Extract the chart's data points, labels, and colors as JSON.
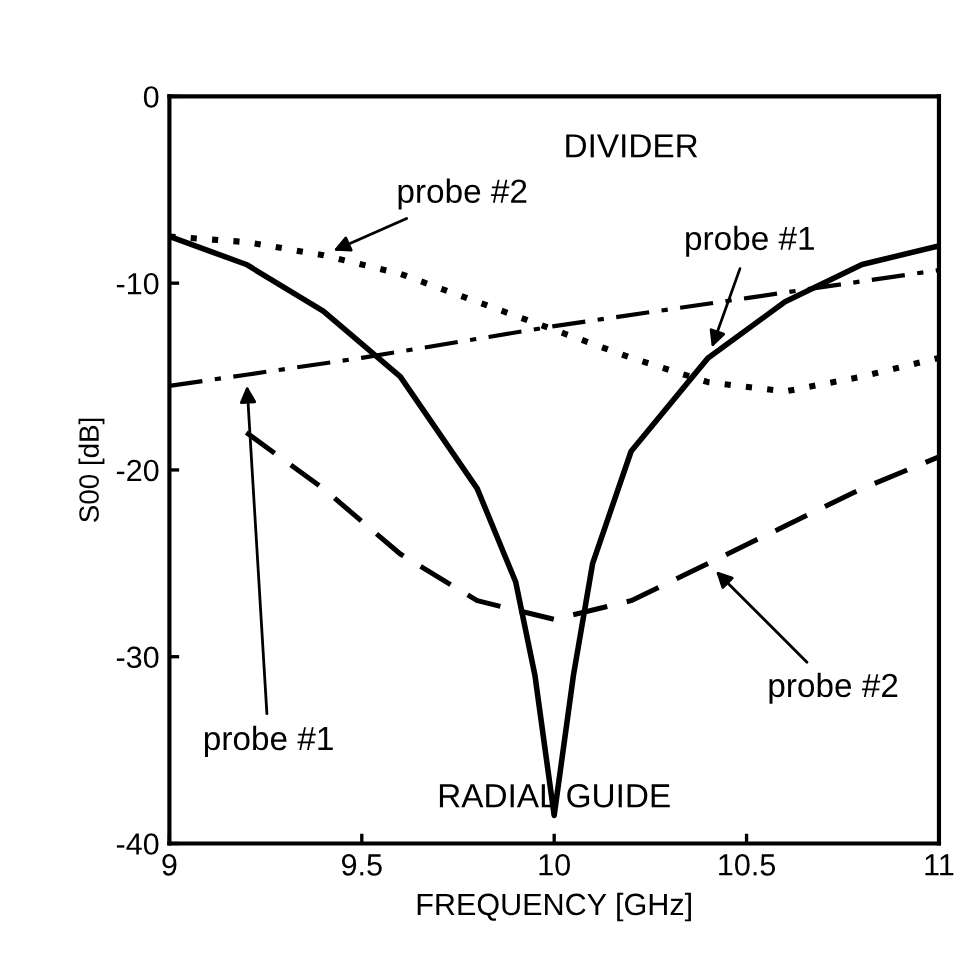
{
  "chart_data": {
    "type": "line",
    "xlabel": "FREQUENCY [GHz]",
    "ylabel": "S00 [dB]",
    "xlim": [
      9,
      11
    ],
    "ylim": [
      -40,
      0
    ],
    "xticks": [
      9,
      9.5,
      10,
      10.5,
      11
    ],
    "yticks": [
      0,
      -10,
      -20,
      -30,
      -40
    ],
    "grid": false,
    "legend": false,
    "series": [
      {
        "color": "#000000",
        "line_style": "solid",
        "x": [
          9,
          9.2,
          9.4,
          9.6,
          9.8,
          9.9,
          9.95,
          10,
          10.05,
          10.1,
          10.2,
          10.4,
          10.6,
          10.8,
          11
        ],
        "values": [
          -7.5,
          -9,
          -11.5,
          -15,
          -21,
          -26,
          -31,
          -38.5,
          -31,
          -25,
          -19,
          -14,
          -11,
          -9,
          -8
        ]
      },
      {
        "color": "#000000",
        "line_style": "dotted",
        "x": [
          9,
          9.2,
          9.4,
          9.6,
          9.8,
          10,
          10.2,
          10.4,
          10.6,
          10.8,
          11
        ],
        "values": [
          -7.5,
          -7.8,
          -8.5,
          -9.5,
          -11,
          -12.5,
          -14,
          -15.3,
          -15.8,
          -15,
          -14
        ]
      },
      {
        "color": "#000000",
        "line_style": "dashdot",
        "x": [
          9,
          9.2,
          9.5,
          10,
          10.5,
          11
        ],
        "values": [
          -15.5,
          -14.9,
          -14,
          -12.3,
          -10.8,
          -9.3
        ]
      },
      {
        "color": "#000000",
        "line_style": "dashed",
        "x": [
          9.2,
          9.4,
          9.6,
          9.8,
          10,
          10.2,
          10.4,
          10.6,
          10.8,
          11
        ],
        "values": [
          -18,
          -21,
          -24.5,
          -27,
          -28,
          -27,
          -25,
          -23,
          -21,
          -19.3
        ]
      }
    ],
    "annotations": [
      "DIVIDER",
      {
        "text": "probe #2",
        "x": 9.4,
        "y": -8.5
      },
      {
        "text": "probe #1",
        "x": 10.4,
        "y": -14
      },
      {
        "text": "probe #1",
        "x": 9.2,
        "y": -14.9
      },
      {
        "text": "probe #2",
        "x": 10.4,
        "y": -25
      },
      "RADIAL GUIDE"
    ]
  }
}
